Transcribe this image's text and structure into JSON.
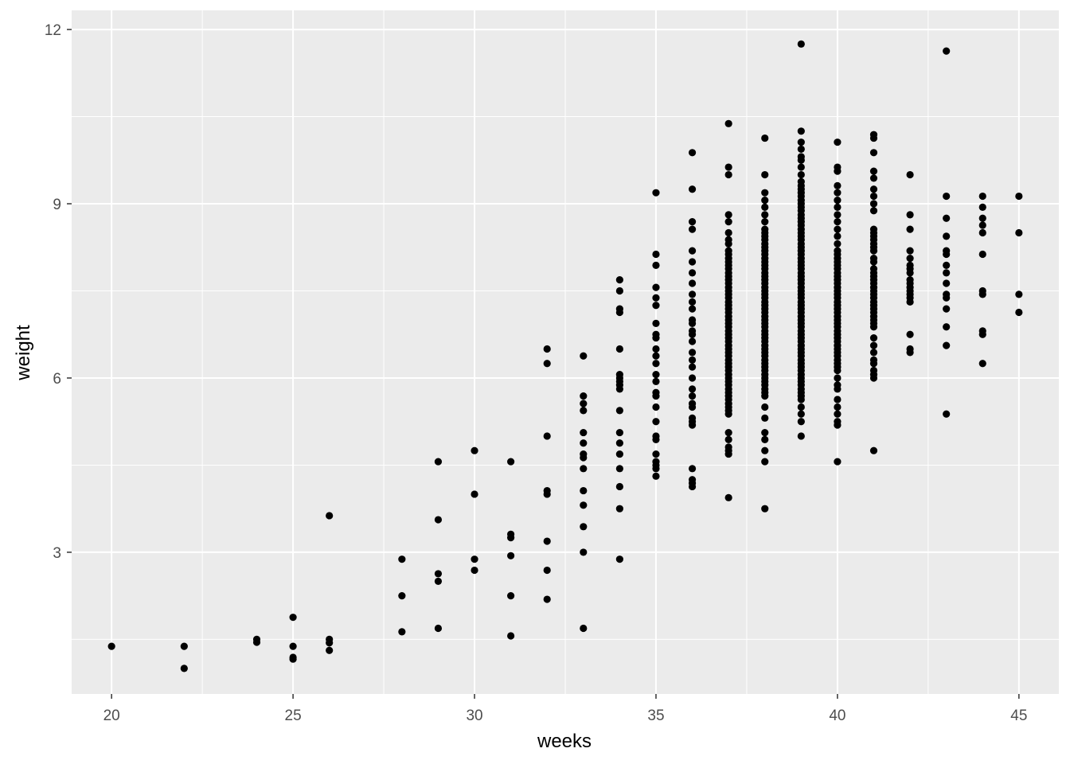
{
  "chart_data": {
    "type": "scatter",
    "title": "",
    "xlabel": "weeks",
    "ylabel": "weight",
    "xlim": [
      18.9,
      46.1
    ],
    "ylim": [
      0.56,
      12.33
    ],
    "x_major_ticks": [
      20,
      25,
      30,
      35,
      40,
      45
    ],
    "x_minor_ticks": [
      22.5,
      27.5,
      32.5,
      37.5,
      42.5
    ],
    "y_major_ticks": [
      3,
      6,
      9,
      12
    ],
    "y_minor_ticks": [
      1.5,
      4.5,
      7.5,
      10.5
    ],
    "x_tick_labels": [
      "20",
      "25",
      "30",
      "35",
      "40",
      "45"
    ],
    "y_tick_labels": [
      "3",
      "6",
      "9",
      "12"
    ],
    "grid": true,
    "legend": "none",
    "colors": {
      "panel": "#ebebeb",
      "grid": "#ffffff",
      "point": "#000000"
    },
    "points_by_week": [
      {
        "x": 20,
        "y": [
          1.38
        ]
      },
      {
        "x": 22,
        "y": [
          1.38,
          1.0
        ]
      },
      {
        "x": 24,
        "y": [
          1.5,
          1.45
        ]
      },
      {
        "x": 25,
        "y": [
          1.88,
          1.38,
          1.19,
          1.16
        ]
      },
      {
        "x": 26,
        "y": [
          3.63,
          1.5,
          1.44,
          1.31
        ]
      },
      {
        "x": 28,
        "y": [
          2.88,
          2.25,
          1.63
        ]
      },
      {
        "x": 29,
        "y": [
          4.56,
          3.56,
          2.63,
          2.5,
          1.69
        ]
      },
      {
        "x": 30,
        "y": [
          4.75,
          4.0,
          2.88,
          2.69
        ]
      },
      {
        "x": 31,
        "y": [
          4.56,
          3.31,
          3.25,
          2.94,
          2.25,
          1.56
        ]
      },
      {
        "x": 32,
        "y": [
          6.5,
          6.25,
          5.0,
          4.06,
          4.0,
          3.19,
          2.69,
          2.19
        ]
      },
      {
        "x": 33,
        "y": [
          6.38,
          5.69,
          5.56,
          5.44,
          5.06,
          4.88,
          4.69,
          4.63,
          4.44,
          4.06,
          3.81,
          3.44,
          3.0,
          1.69
        ]
      },
      {
        "x": 34,
        "y": [
          7.69,
          7.5,
          7.19,
          7.13,
          6.5,
          6.06,
          6.0,
          5.94,
          5.88,
          5.81,
          5.44,
          5.06,
          4.88,
          4.69,
          4.44,
          4.13,
          3.75,
          2.88
        ]
      },
      {
        "x": 35,
        "y": [
          9.19,
          8.13,
          7.94,
          7.56,
          7.38,
          7.25,
          6.94,
          6.75,
          6.69,
          6.5,
          6.38,
          6.25,
          6.06,
          5.94,
          5.75,
          5.69,
          5.5,
          5.25,
          5.0,
          4.94,
          4.69,
          4.56,
          4.5,
          4.44,
          4.31
        ]
      },
      {
        "x": 36,
        "y": [
          9.88,
          9.25,
          8.69,
          8.56,
          8.19,
          8.0,
          7.81,
          7.63,
          7.44,
          7.31,
          7.19,
          7.0,
          6.94,
          6.81,
          6.75,
          6.63,
          6.44,
          6.31,
          6.19,
          6.0,
          5.81,
          5.69,
          5.56,
          5.5,
          5.31,
          5.25,
          5.19,
          4.44,
          4.25,
          4.19,
          4.13
        ]
      },
      {
        "x": 37,
        "y": [
          10.38,
          9.63,
          9.5,
          8.81,
          8.69,
          8.5,
          8.38,
          8.31,
          8.19,
          8.13,
          8.06,
          8.0,
          7.94,
          7.88,
          7.81,
          7.75,
          7.69,
          7.63,
          7.56,
          7.5,
          7.44,
          7.38,
          7.31,
          7.25,
          7.19,
          7.13,
          7.06,
          7.0,
          6.94,
          6.88,
          6.81,
          6.75,
          6.69,
          6.63,
          6.56,
          6.5,
          6.44,
          6.38,
          6.31,
          6.25,
          6.19,
          6.13,
          6.06,
          6.0,
          5.94,
          5.88,
          5.81,
          5.75,
          5.69,
          5.63,
          5.56,
          5.5,
          5.44,
          5.38,
          5.06,
          4.94,
          4.81,
          4.75,
          4.69,
          3.94
        ]
      },
      {
        "x": 38,
        "y": [
          10.13,
          9.5,
          9.19,
          9.06,
          8.94,
          8.81,
          8.69,
          8.56,
          8.5,
          8.44,
          8.38,
          8.31,
          8.25,
          8.19,
          8.13,
          8.06,
          8.0,
          7.94,
          7.88,
          7.81,
          7.75,
          7.69,
          7.63,
          7.56,
          7.5,
          7.44,
          7.38,
          7.31,
          7.25,
          7.19,
          7.13,
          7.06,
          7.0,
          6.94,
          6.88,
          6.81,
          6.75,
          6.69,
          6.63,
          6.56,
          6.5,
          6.44,
          6.38,
          6.31,
          6.25,
          6.19,
          6.13,
          6.06,
          6.0,
          5.94,
          5.88,
          5.81,
          5.75,
          5.69,
          5.5,
          5.31,
          5.06,
          4.94,
          4.75,
          4.56,
          3.75
        ]
      },
      {
        "x": 39,
        "y": [
          11.75,
          10.25,
          10.06,
          9.94,
          9.81,
          9.75,
          9.63,
          9.5,
          9.38,
          9.31,
          9.25,
          9.19,
          9.13,
          9.06,
          9.0,
          8.94,
          8.88,
          8.81,
          8.75,
          8.69,
          8.63,
          8.56,
          8.5,
          8.44,
          8.38,
          8.31,
          8.25,
          8.19,
          8.13,
          8.06,
          8.0,
          7.94,
          7.88,
          7.81,
          7.75,
          7.69,
          7.63,
          7.56,
          7.5,
          7.44,
          7.38,
          7.31,
          7.25,
          7.19,
          7.13,
          7.06,
          7.0,
          6.94,
          6.88,
          6.81,
          6.75,
          6.69,
          6.63,
          6.56,
          6.5,
          6.44,
          6.38,
          6.31,
          6.25,
          6.19,
          6.13,
          6.06,
          6.0,
          5.94,
          5.88,
          5.81,
          5.75,
          5.69,
          5.63,
          5.5,
          5.38,
          5.25,
          5.0
        ]
      },
      {
        "x": 40,
        "y": [
          10.06,
          9.63,
          9.56,
          9.31,
          9.19,
          9.06,
          8.94,
          8.81,
          8.69,
          8.56,
          8.44,
          8.31,
          8.19,
          8.13,
          8.06,
          8.0,
          7.94,
          7.88,
          7.81,
          7.75,
          7.69,
          7.63,
          7.56,
          7.5,
          7.44,
          7.38,
          7.31,
          7.25,
          7.19,
          7.13,
          7.06,
          7.0,
          6.94,
          6.88,
          6.81,
          6.75,
          6.69,
          6.63,
          6.56,
          6.5,
          6.44,
          6.38,
          6.31,
          6.25,
          6.19,
          6.13,
          6.0,
          5.88,
          5.81,
          5.63,
          5.5,
          5.38,
          5.25,
          5.19,
          4.56
        ]
      },
      {
        "x": 41,
        "y": [
          10.19,
          10.13,
          9.88,
          9.56,
          9.44,
          9.25,
          9.13,
          9.0,
          8.88,
          8.56,
          8.5,
          8.44,
          8.38,
          8.31,
          8.25,
          8.19,
          8.06,
          8.0,
          7.88,
          7.81,
          7.75,
          7.69,
          7.63,
          7.56,
          7.5,
          7.44,
          7.38,
          7.31,
          7.25,
          7.19,
          7.13,
          7.06,
          7.0,
          6.94,
          6.88,
          6.69,
          6.56,
          6.44,
          6.31,
          6.25,
          6.13,
          6.06,
          6.0,
          4.75
        ]
      },
      {
        "x": 42,
        "y": [
          9.5,
          8.81,
          8.56,
          8.19,
          8.06,
          7.94,
          7.88,
          7.81,
          7.69,
          7.63,
          7.56,
          7.5,
          7.44,
          7.38,
          7.31,
          6.75,
          6.5,
          6.44
        ]
      },
      {
        "x": 43,
        "y": [
          11.63,
          9.13,
          8.75,
          8.44,
          8.19,
          8.13,
          7.94,
          7.81,
          7.63,
          7.44,
          7.38,
          7.19,
          6.88,
          6.56,
          5.38
        ]
      },
      {
        "x": 44,
        "y": [
          9.13,
          8.94,
          8.75,
          8.63,
          8.5,
          8.13,
          7.5,
          7.44,
          6.81,
          6.75,
          6.25
        ]
      },
      {
        "x": 45,
        "y": [
          9.13,
          8.5,
          7.44,
          7.13
        ]
      }
    ]
  }
}
